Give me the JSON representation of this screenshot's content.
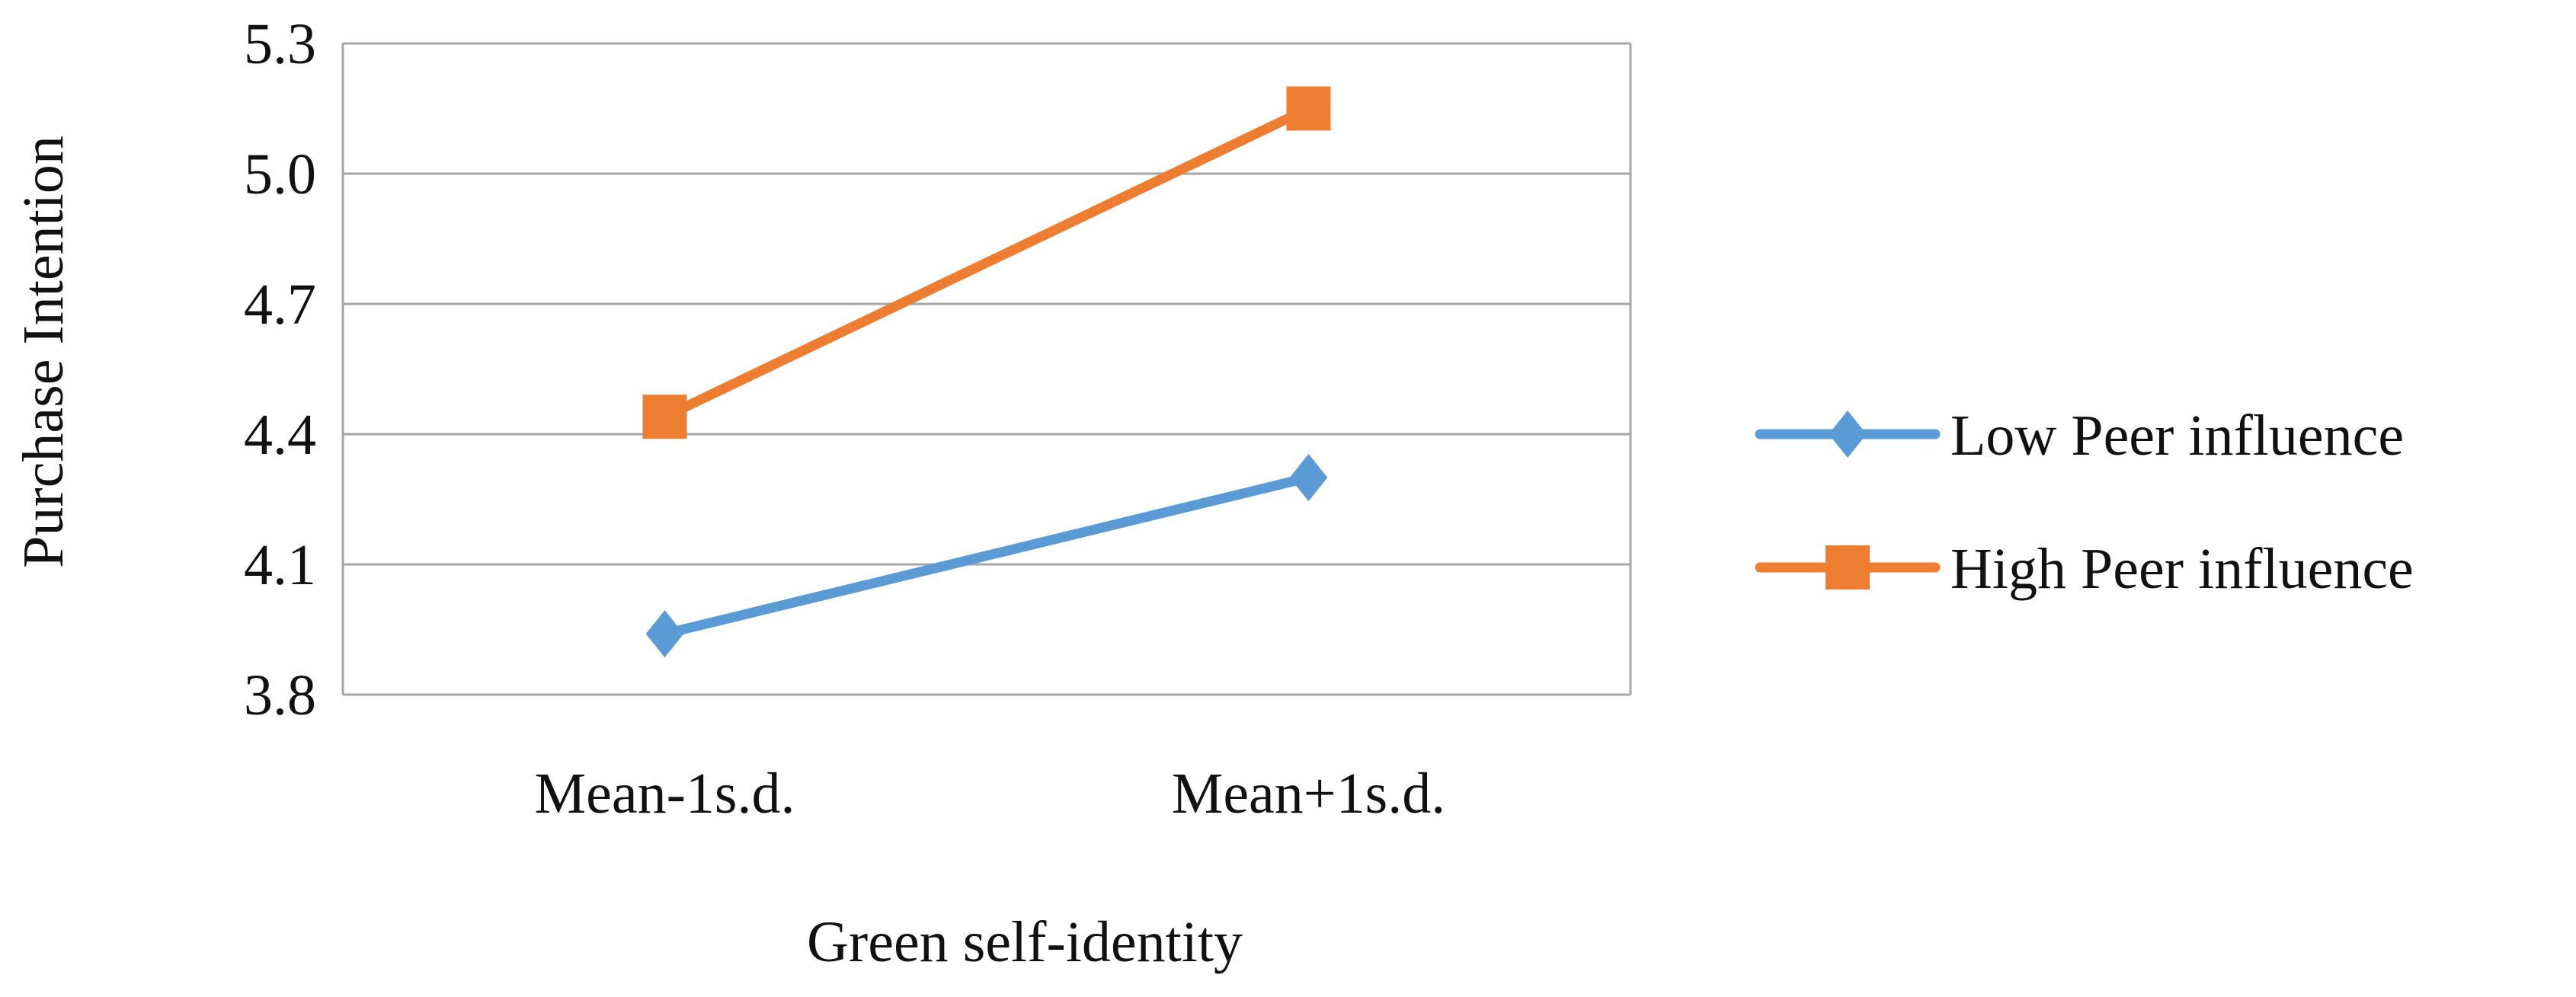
{
  "chart_data": {
    "type": "line",
    "title": "",
    "xlabel": "Green self-identity",
    "ylabel": "Purchase Intention",
    "categories": [
      "Mean-1s.d.",
      "Mean+1s.d."
    ],
    "ylim": [
      3.8,
      5.3
    ],
    "yticks": [
      "3.8",
      "4.1",
      "4.4",
      "4.7",
      "5.0",
      "5.3"
    ],
    "grid": true,
    "legend_position": "right",
    "series": [
      {
        "name": "Low Peer influence",
        "values": [
          3.94,
          4.3
        ],
        "color": "#5B9BD5",
        "marker": "diamond"
      },
      {
        "name": "High Peer influence",
        "values": [
          4.44,
          5.15
        ],
        "color": "#ED7D31",
        "marker": "square"
      }
    ]
  }
}
